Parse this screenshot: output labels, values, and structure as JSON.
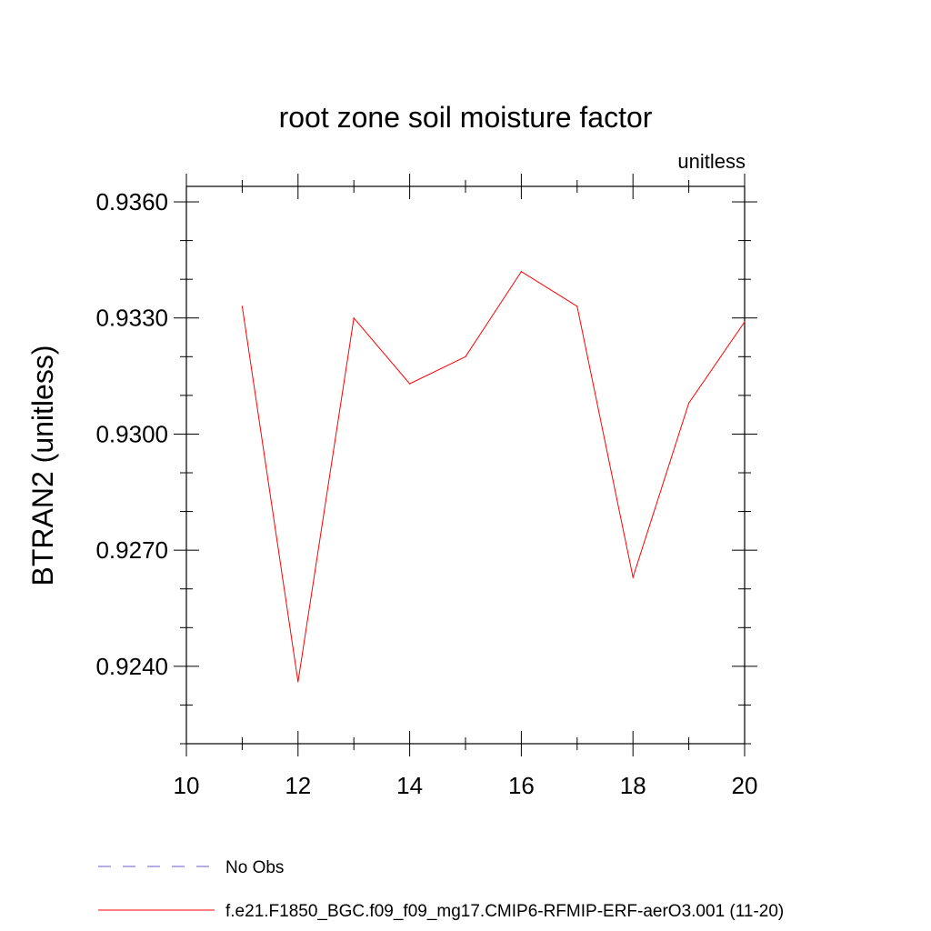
{
  "chart_data": {
    "type": "line",
    "title": "root zone soil moisture factor",
    "subtitle_right": "unitless",
    "ylabel": "BTRAN2  (unitless)",
    "xlabel": "",
    "xlim": [
      10,
      20
    ],
    "ylim": [
      0.922,
      0.9364
    ],
    "xticks": [
      10,
      12,
      14,
      16,
      18,
      20
    ],
    "xtick_labels": [
      "10",
      "12",
      "14",
      "16",
      "18",
      "20"
    ],
    "yticks": [
      0.924,
      0.927,
      0.93,
      0.933,
      0.936
    ],
    "ytick_labels": [
      "0.9240",
      "0.9270",
      "0.9300",
      "0.9330",
      "0.9360"
    ],
    "grid": false,
    "legend_placement": "bottom-left",
    "series": [
      {
        "name": "No Obs",
        "color": "#6a5acd",
        "dash": true,
        "x": [],
        "y": []
      },
      {
        "name": "f.e21.F1850_BGC.f09_f09_mg17.CMIP6-RFMIP-ERF-aerO3.001 (11-20)",
        "color": "#ff0000",
        "dash": false,
        "x": [
          11,
          12,
          13,
          14,
          15,
          16,
          17,
          18,
          19,
          20
        ],
        "y": [
          0.9333,
          0.9236,
          0.933,
          0.9313,
          0.932,
          0.9342,
          0.9333,
          0.9263,
          0.9308,
          0.9329
        ]
      }
    ]
  }
}
